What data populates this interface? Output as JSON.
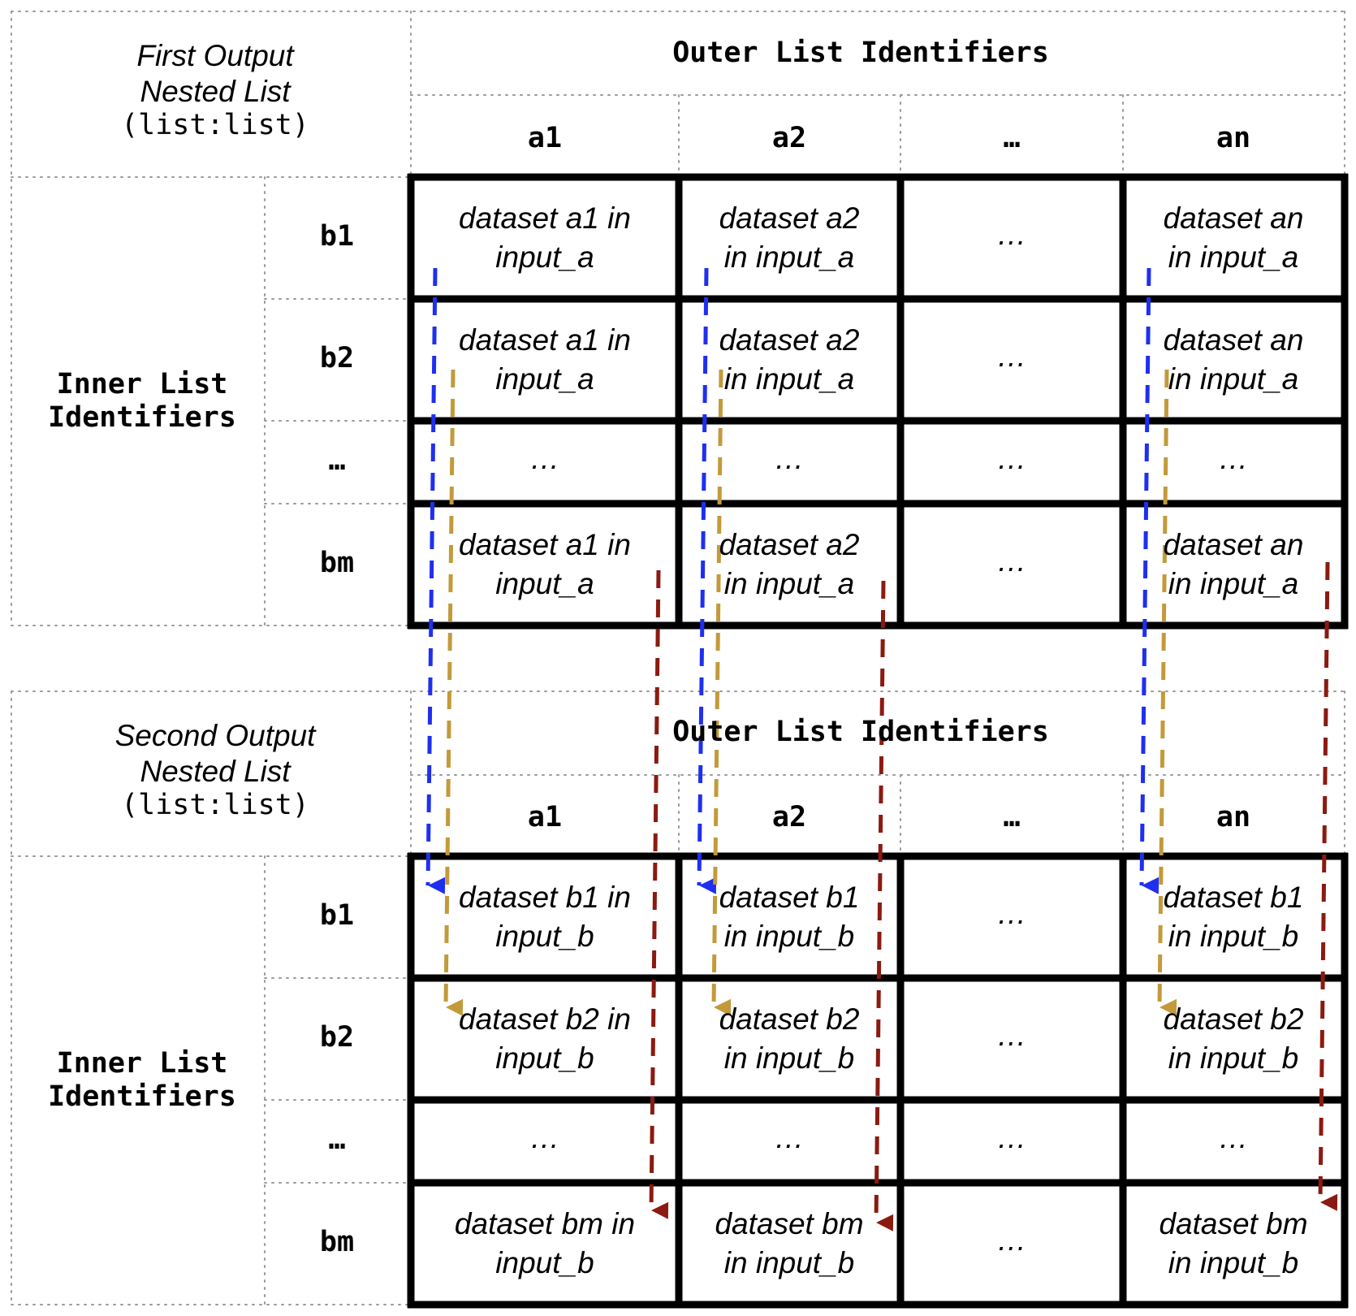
{
  "tables": [
    {
      "caption": {
        "line1": "First Output",
        "line2": "Nested List",
        "line3": "(list:list)"
      },
      "outer_header": "Outer List Identifiers",
      "inner_header": {
        "line1": "Inner List",
        "line2": "Identifiers"
      },
      "columns": [
        "a1",
        "a2",
        "…",
        "an"
      ],
      "rows": [
        "b1",
        "b2",
        "…",
        "bm"
      ],
      "cells": [
        [
          [
            "dataset a1 in",
            "input_a"
          ],
          [
            "dataset a2",
            "in input_a"
          ],
          [
            "…",
            ""
          ],
          [
            "dataset an",
            "in input_a"
          ]
        ],
        [
          [
            "dataset a1 in",
            "input_a"
          ],
          [
            "dataset a2",
            "in input_a"
          ],
          [
            "…",
            ""
          ],
          [
            "dataset an",
            "in input_a"
          ]
        ],
        [
          [
            "…",
            ""
          ],
          [
            "…",
            ""
          ],
          [
            "…",
            ""
          ],
          [
            "…",
            ""
          ]
        ],
        [
          [
            "dataset a1 in",
            "input_a"
          ],
          [
            "dataset a2",
            "in input_a"
          ],
          [
            "…",
            ""
          ],
          [
            "dataset an",
            "in input_a"
          ]
        ]
      ]
    },
    {
      "caption": {
        "line1": "Second Output",
        "line2": "Nested List",
        "line3": "(list:list)"
      },
      "outer_header": "Outer List Identifiers",
      "inner_header": {
        "line1": "Inner List",
        "line2": "Identifiers"
      },
      "columns": [
        "a1",
        "a2",
        "…",
        "an"
      ],
      "rows": [
        "b1",
        "b2",
        "…",
        "bm"
      ],
      "cells": [
        [
          [
            "dataset b1 in",
            "input_b"
          ],
          [
            "dataset b1",
            "in input_b"
          ],
          [
            "…",
            ""
          ],
          [
            "dataset b1",
            "in input_b"
          ]
        ],
        [
          [
            "dataset b2 in",
            "input_b"
          ],
          [
            "dataset b2",
            "in input_b"
          ],
          [
            "…",
            ""
          ],
          [
            "dataset b2",
            "in input_b"
          ]
        ],
        [
          [
            "…",
            ""
          ],
          [
            "…",
            ""
          ],
          [
            "…",
            ""
          ],
          [
            "…",
            ""
          ]
        ],
        [
          [
            "dataset bm in",
            "input_b"
          ],
          [
            "dataset bm",
            "in input_b"
          ],
          [
            "…",
            ""
          ],
          [
            "dataset bm",
            "in input_b"
          ]
        ]
      ]
    }
  ],
  "arrow_colors": {
    "b1": "#1f2ff0",
    "b2": "#c39a3b",
    "bm": "#8b1a10"
  }
}
